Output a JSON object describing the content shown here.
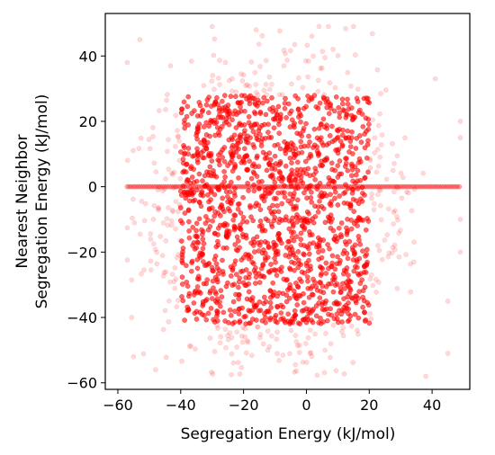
{
  "chart_data": {
    "type": "scatter",
    "title": "",
    "xlabel": "Segregation Energy (kJ/mol)",
    "ylabel_lines": [
      "Nearest Neighbor",
      "Segregation Energy (kJ/mol)"
    ],
    "xlim": [
      -64,
      52
    ],
    "ylim": [
      -62,
      53
    ],
    "xticks": [
      -60,
      -40,
      -20,
      0,
      20,
      40
    ],
    "yticks": [
      -60,
      -40,
      -20,
      0,
      20,
      40
    ],
    "xtick_labels": [
      "−60",
      "−40",
      "−20",
      "0",
      "20",
      "40"
    ],
    "ytick_labels": [
      "−60",
      "−40",
      "−20",
      "0",
      "20",
      "40"
    ],
    "grid": false,
    "legend": false,
    "marker_color": "#ff0000",
    "marker_alpha": 0.15,
    "series": [
      {
        "description": "dense cloud of points, approximate extent",
        "core_region": {
          "x": [
            -40,
            20
          ],
          "y": [
            -42,
            28
          ]
        },
        "outer_region": {
          "x": [
            -58,
            38
          ],
          "y": [
            -58,
            49
          ]
        }
      },
      {
        "description": "horizontal band of points at zero neighbor energy",
        "y": 0,
        "x_range": [
          -57,
          49
        ]
      }
    ],
    "outliers": [
      {
        "x": -57,
        "y": 38
      },
      {
        "x": -55,
        "y": -52
      },
      {
        "x": -53,
        "y": 45
      },
      {
        "x": 49,
        "y": 20
      },
      {
        "x": 49,
        "y": 15
      },
      {
        "x": 49,
        "y": -10
      },
      {
        "x": 49,
        "y": -20
      },
      {
        "x": 45,
        "y": -35
      },
      {
        "x": 45,
        "y": -51
      },
      {
        "x": 38,
        "y": -58
      },
      {
        "x": -30,
        "y": 49
      },
      {
        "x": -16,
        "y": 48
      },
      {
        "x": 4,
        "y": 49
      },
      {
        "x": 7,
        "y": 49
      },
      {
        "x": 15,
        "y": 49
      },
      {
        "x": -48,
        "y": -56
      },
      {
        "x": 41,
        "y": 33
      }
    ]
  }
}
